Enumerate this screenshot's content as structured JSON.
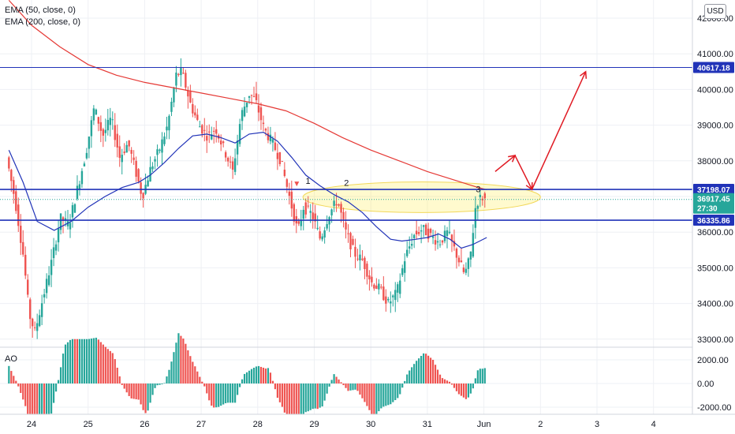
{
  "legend": {
    "ema50": "EMA (50, close, 0)",
    "ema200": "EMA (200, close, 0)",
    "ao": "AO",
    "currency": "USD"
  },
  "chart_data": [
    {
      "type": "candlestick",
      "x_ticks": [
        "24",
        "25",
        "26",
        "27",
        "28",
        "29",
        "30",
        "31",
        "Jun",
        "2",
        "3",
        "4"
      ],
      "y_ticks": [
        33000,
        34000,
        35000,
        36000,
        37000,
        38000,
        39000,
        40000,
        41000,
        42000
      ],
      "y_tick_labels": [
        "33000.00",
        "34000.00",
        "35000.00",
        "36000.00",
        "37000.00",
        "38000.00",
        "39000.00",
        "40000.00",
        "41000.00",
        "42000.00"
      ],
      "ylim": [
        32900,
        42300
      ],
      "grid": true,
      "price_levels": [
        {
          "value": 40617.18,
          "label": "40617.18",
          "color": "#2133b8"
        },
        {
          "value": 37198.07,
          "label": "37198.07",
          "color": "#2133b8"
        },
        {
          "value": 36335.86,
          "label": "36335.86",
          "color": "#2133b8"
        }
      ],
      "last_price": {
        "value": 36917.45,
        "label": "36917.45",
        "countdown": "27:30",
        "color": "#26a69a"
      },
      "colors": {
        "up": "#26a69a",
        "down": "#ef5350",
        "ema50": "#2133b8",
        "ema200": "#e53935",
        "annotation": "#e01b24"
      },
      "ema50_points": [
        {
          "x": 23.6,
          "y": 38300
        },
        {
          "x": 23.85,
          "y": 37400
        },
        {
          "x": 24.1,
          "y": 36300
        },
        {
          "x": 24.4,
          "y": 36050
        },
        {
          "x": 24.7,
          "y": 36300
        },
        {
          "x": 25.0,
          "y": 36700
        },
        {
          "x": 25.3,
          "y": 37000
        },
        {
          "x": 25.6,
          "y": 37250
        },
        {
          "x": 25.9,
          "y": 37400
        },
        {
          "x": 26.1,
          "y": 37600
        },
        {
          "x": 26.35,
          "y": 37950
        },
        {
          "x": 26.6,
          "y": 38350
        },
        {
          "x": 26.85,
          "y": 38700
        },
        {
          "x": 27.1,
          "y": 38750
        },
        {
          "x": 27.35,
          "y": 38650
        },
        {
          "x": 27.6,
          "y": 38500
        },
        {
          "x": 27.85,
          "y": 38750
        },
        {
          "x": 28.1,
          "y": 38800
        },
        {
          "x": 28.35,
          "y": 38550
        },
        {
          "x": 28.6,
          "y": 38100
        },
        {
          "x": 28.85,
          "y": 37600
        },
        {
          "x": 29.1,
          "y": 37300
        },
        {
          "x": 29.35,
          "y": 37050
        },
        {
          "x": 29.6,
          "y": 36850
        },
        {
          "x": 29.85,
          "y": 36550
        },
        {
          "x": 30.1,
          "y": 36150
        },
        {
          "x": 30.35,
          "y": 35800
        },
        {
          "x": 30.55,
          "y": 35750
        },
        {
          "x": 30.8,
          "y": 35800
        },
        {
          "x": 31.0,
          "y": 35850
        },
        {
          "x": 31.2,
          "y": 35950
        },
        {
          "x": 31.4,
          "y": 35800
        },
        {
          "x": 31.6,
          "y": 35550
        },
        {
          "x": 31.8,
          "y": 35650
        },
        {
          "x": 32.05,
          "y": 35850
        }
      ],
      "ema200_points": [
        {
          "x": 23.6,
          "y": 42500
        },
        {
          "x": 24.0,
          "y": 41800
        },
        {
          "x": 24.5,
          "y": 41200
        },
        {
          "x": 25.0,
          "y": 40700
        },
        {
          "x": 25.5,
          "y": 40400
        },
        {
          "x": 26.0,
          "y": 40200
        },
        {
          "x": 26.5,
          "y": 40050
        },
        {
          "x": 27.0,
          "y": 39900
        },
        {
          "x": 27.5,
          "y": 39750
        },
        {
          "x": 28.0,
          "y": 39600
        },
        {
          "x": 28.5,
          "y": 39400
        },
        {
          "x": 29.0,
          "y": 39050
        },
        {
          "x": 29.5,
          "y": 38650
        },
        {
          "x": 30.0,
          "y": 38300
        },
        {
          "x": 30.5,
          "y": 38000
        },
        {
          "x": 31.0,
          "y": 37700
        },
        {
          "x": 31.5,
          "y": 37450
        },
        {
          "x": 31.9,
          "y": 37250
        },
        {
          "x": 32.05,
          "y": 37190
        }
      ],
      "annotations": {
        "labels": [
          {
            "text": "1",
            "x": 28.89,
            "y": 37350
          },
          {
            "text": "2",
            "x": 29.57,
            "y": 37300
          },
          {
            "text": "3",
            "x": 31.9,
            "y": 37120
          }
        ],
        "marker": {
          "x": 28.69,
          "y": 37330
        },
        "ellipse": {
          "cx": 30.9,
          "cy": 36980,
          "rx_days": 4.2,
          "ry_price": 430
        },
        "path": [
          {
            "x": 32.2,
            "y": 37700
          },
          {
            "x": 32.55,
            "y": 38150
          },
          {
            "x": 32.85,
            "y": 37200
          },
          {
            "x": 33.8,
            "y": 40500
          }
        ]
      },
      "ao_ticks": [
        2000,
        0,
        -2000
      ],
      "ao_tick_labels": [
        "2000.00",
        "0.00",
        "-2000.00"
      ]
    }
  ]
}
